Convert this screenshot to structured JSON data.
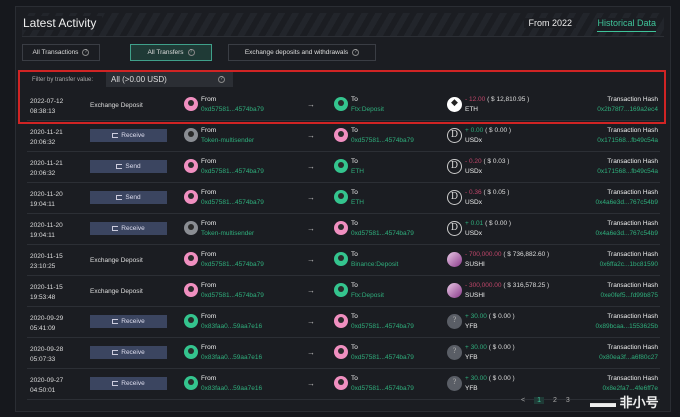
{
  "header": {
    "title": "Latest Activity",
    "from": "From 2022",
    "historical": "Historical Data"
  },
  "tabs": [
    {
      "label": "All Transactions"
    },
    {
      "label": "All Transfers",
      "active": true
    },
    {
      "label": "Exchange deposits and withdrawals"
    }
  ],
  "filter": {
    "label": "Filter by transfer value:",
    "value": "All (>0.00 USD)"
  },
  "hash_label": "Transaction Hash",
  "from_label": "From",
  "to_label": "To",
  "rows": [
    {
      "date": "2022-07-12",
      "time": "08:38:13",
      "type": "Exchange Deposit",
      "button": false,
      "from": "0xd57581...4574ba79",
      "from_av": "pink",
      "to": "Ftx:Deposit",
      "to_av": "green",
      "amount": "- 12.00",
      "usd": "( $ 12,810.95 )",
      "sign": "neg",
      "token": "ETH",
      "token_icon": "eth",
      "hash": "0x2b78f7...169a2ec4"
    },
    {
      "date": "2020-11-21",
      "time": "20:06:32",
      "type": "Receive",
      "button": true,
      "from": "Token-multisender",
      "from_av": "gray",
      "to": "0xd57581...4574ba79",
      "to_av": "pink",
      "amount": "+ 0.00",
      "usd": "( $ 0.00 )",
      "sign": "pos",
      "token": "USDx",
      "token_icon": "d",
      "hash": "0x171568...fb49c54a"
    },
    {
      "date": "2020-11-21",
      "time": "20:06:32",
      "type": "Send",
      "button": true,
      "from": "0xd57581...4574ba79",
      "from_av": "pink",
      "to": "ETH",
      "to_av": "green",
      "amount": "- 0.20",
      "usd": "( $ 0.03 )",
      "sign": "neg",
      "token": "USDx",
      "token_icon": "d",
      "hash": "0x171568...fb49c54a"
    },
    {
      "date": "2020-11-20",
      "time": "19:04:11",
      "type": "Send",
      "button": true,
      "from": "0xd57581...4574ba79",
      "from_av": "pink",
      "to": "ETH",
      "to_av": "green",
      "amount": "- 0.36",
      "usd": "( $ 0.05 )",
      "sign": "neg",
      "token": "USDx",
      "token_icon": "d",
      "hash": "0x4a6e3d...767c54b9"
    },
    {
      "date": "2020-11-20",
      "time": "19:04:11",
      "type": "Receive",
      "button": true,
      "from": "Token-multisender",
      "from_av": "gray",
      "to": "0xd57581...4574ba79",
      "to_av": "pink",
      "amount": "+ 0.01",
      "usd": "( $ 0.00 )",
      "sign": "pos",
      "token": "USDx",
      "token_icon": "d",
      "hash": "0x4a6e3d...767c54b9"
    },
    {
      "date": "2020-11-15",
      "time": "23:10:25",
      "type": "Exchange Deposit",
      "button": false,
      "from": "0xd57581...4574ba79",
      "from_av": "pink",
      "to": "Binance:Deposit",
      "to_av": "green",
      "amount": "- 700,000.00",
      "usd": "( $ 736,882.60 )",
      "sign": "neg",
      "token": "SUSHI",
      "token_icon": "sushi",
      "hash": "0x6ffa2c...1bc81590"
    },
    {
      "date": "2020-11-15",
      "time": "19:53:48",
      "type": "Exchange Deposit",
      "button": false,
      "from": "0xd57581...4574ba79",
      "from_av": "pink",
      "to": "Ftx:Deposit",
      "to_av": "green",
      "amount": "- 300,000.00",
      "usd": "( $ 316,578.25 )",
      "sign": "neg",
      "token": "SUSHI",
      "token_icon": "sushi",
      "hash": "0xe0fef5...fd99b875"
    },
    {
      "date": "2020-09-29",
      "time": "05:41:09",
      "type": "Receive",
      "button": true,
      "from": "0x83faa0...59aa7e16",
      "from_av": "green",
      "to": "0xd57581...4574ba79",
      "to_av": "pink",
      "amount": "+ 30.00",
      "usd": "( $ 0.00 )",
      "sign": "pos",
      "token": "YFB",
      "token_icon": "unk",
      "hash": "0x89bcaa...1553625b"
    },
    {
      "date": "2020-09-28",
      "time": "05:07:33",
      "type": "Receive",
      "button": true,
      "from": "0x83faa0...59aa7e16",
      "from_av": "green",
      "to": "0xd57581...4574ba79",
      "to_av": "pink",
      "amount": "+ 30.00",
      "usd": "( $ 0.00 )",
      "sign": "pos",
      "token": "YFB",
      "token_icon": "unk",
      "hash": "0x80ea3f...a6f80c27"
    },
    {
      "date": "2020-09-27",
      "time": "04:50:01",
      "type": "Receive",
      "button": true,
      "from": "0x83faa0...59aa7e16",
      "from_av": "green",
      "to": "0xd57581...4574ba79",
      "to_av": "pink",
      "amount": "+ 30.00",
      "usd": "( $ 0.00 )",
      "sign": "pos",
      "token": "YFB",
      "token_icon": "unk",
      "hash": "0x8e2fa7...4fe6ff7e"
    }
  ],
  "pagination": {
    "prev": "<",
    "pages": [
      "1",
      "2",
      "3"
    ],
    "current": "1"
  },
  "watermark": "非小号",
  "colors": {
    "accent": "#3fc49a",
    "negative": "#c0466a",
    "highlight_box": "#d02424"
  }
}
